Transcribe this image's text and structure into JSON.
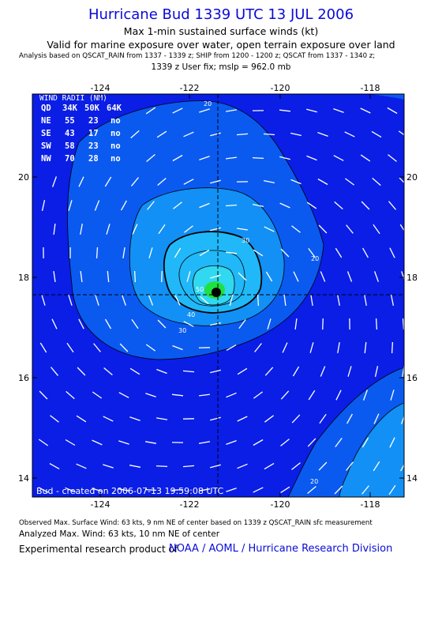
{
  "header": {
    "title": "Hurricane Bud 1339 UTC 13 JUL 2006",
    "subtitle_1": "Max 1-min sustained surface winds (kt)",
    "subtitle_2": "Valid for marine exposure over water, open terrain exposure over land",
    "analysis_sources": "Analysis based on  QSCAT_RAIN from 1337 - 1339 z;  SHIP from 1200 - 1200 z;  QSCAT from 1337 - 1340 z;",
    "fix_info": "1339 z User fix; mslp = 962.0 mb"
  },
  "map": {
    "lon_ticks": [
      "-124",
      "-122",
      "-120",
      "-118"
    ],
    "lat_ticks": [
      "20",
      "18",
      "16",
      "14"
    ],
    "storm_center": {
      "lon": -121.5,
      "lat": 17.7
    },
    "created_label": "Bud - created on 2006-07-13 19:59:08 UTC",
    "contour_labels": [
      "20",
      "30",
      "40",
      "50",
      "20",
      "30",
      "20"
    ],
    "colors": {
      "deep_blue": "#0a1ee6",
      "mid_blue": "#0a5af0",
      "light_blue": "#1290f5",
      "cyan": "#20b8f8",
      "aqua": "#30d8f0",
      "green": "#20e040",
      "center": "#000000"
    }
  },
  "wind_radii": {
    "title": "WIND RADII (NM)",
    "header": [
      "QD",
      "34K",
      "50K",
      "64K"
    ],
    "rows": [
      [
        "NE",
        "55",
        "23",
        "no"
      ],
      [
        "SE",
        "43",
        "17",
        "no"
      ],
      [
        "SW",
        "58",
        "23",
        "no"
      ],
      [
        "NW",
        "70",
        "28",
        "no"
      ]
    ]
  },
  "footer": {
    "observed": "Observed Max. Surface Wind: 63 kts, 9 nm NE of center based on 1339 z QSCAT_RAIN sfc measurement",
    "analyzed": "Analyzed Max. Wind: 63 kts, 10 nm NE of center",
    "credit_prefix": "Experimental research product of",
    "credit_org": "NOAA / AOML / Hurricane Research Division"
  }
}
